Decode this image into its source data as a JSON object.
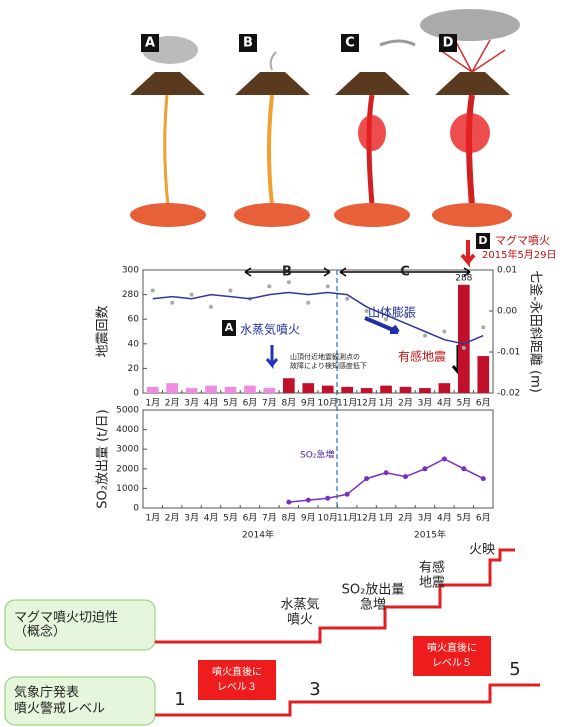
{
  "diagram": {
    "panels": [
      "A",
      "B",
      "C",
      "D"
    ]
  },
  "chart_data": [
    {
      "type": "bar",
      "y_label": "地震回数",
      "y2_label": "七釜-永田斜距離 (m)",
      "categories": [
        "1月",
        "2月",
        "3月",
        "4月",
        "5月",
        "6月",
        "7月",
        "8月",
        "9月",
        "10月",
        "11月",
        "12月",
        "1月",
        "2月",
        "3月",
        "4月",
        "5月",
        "6月"
      ],
      "series": [
        {
          "color": "#f08ce0",
          "values": [
            5,
            8,
            4,
            6,
            5,
            6,
            4,
            null,
            null,
            null,
            null,
            null,
            null,
            null,
            null,
            null,
            null,
            null
          ]
        },
        {
          "color": "#c0102a",
          "values": [
            null,
            null,
            null,
            null,
            null,
            null,
            null,
            12,
            8,
            6,
            5,
            4,
            6,
            5,
            4,
            8,
            288,
            30
          ]
        },
        {
          "type": "scatter",
          "axis": "y2",
          "color": "#aaaaaa",
          "values": [
            0.005,
            0.002,
            0.004,
            0.001,
            0.005,
            0.003,
            0.006,
            0.007,
            0.002,
            0.006,
            0.003,
            0.0,
            -0.002,
            -0.001,
            -0.006,
            -0.005,
            -0.009,
            -0.004
          ]
        },
        {
          "type": "line",
          "axis": "y2",
          "color": "#2b3a9c",
          "values": [
            0.003,
            0.0035,
            0.003,
            0.004,
            0.0035,
            0.003,
            0.004,
            0.0045,
            0.004,
            0.0045,
            0.004,
            0.001,
            -0.001,
            -0.003,
            -0.005,
            -0.007,
            -0.008,
            -0.006
          ]
        }
      ],
      "ylim": [
        0,
        300
      ],
      "yticks": [
        0,
        20,
        40,
        60,
        280,
        300
      ],
      "y2lim": [
        -0.02,
        0.01
      ],
      "y2ticks": [
        -0.02,
        -0.01,
        {
          "value": 0,
          "label": "0.00"
        },
        0.01
      ],
      "annotations": {
        "B": "B",
        "C": "C",
        "D": "D",
        "magma": "マグマ噴火",
        "date": "2015年5月29日",
        "A": "A",
        "phreatic": "水蒸気噴火",
        "inflation": "山体膨張",
        "felt": "有感地震",
        "note": [
          "山頂付近地震観測点の",
          "故障により検知感度低下"
        ]
      }
    },
    {
      "type": "line",
      "y_label": "SO₂放出量 (t/日)",
      "categories": [
        "1月",
        "2月",
        "3月",
        "4月",
        "5月",
        "6月",
        "7月",
        "8月",
        "9月",
        "10月",
        "11月",
        "12月",
        "1月",
        "2月",
        "3月",
        "4月",
        "5月",
        "6月"
      ],
      "series": [
        {
          "color": "#7b2fbf",
          "values": [
            null,
            null,
            null,
            null,
            null,
            null,
            null,
            300,
            400,
            500,
            700,
            1500,
            1800,
            1600,
            2000,
            2500,
            2000,
            1500
          ]
        }
      ],
      "ylim": [
        0,
        5000
      ],
      "yticks": [
        0,
        1000,
        2000,
        3000,
        4000,
        5000
      ],
      "annotation": "SO₂急増",
      "years": [
        "2014年",
        "2015年"
      ]
    }
  ],
  "stairs": {
    "left": [
      [
        "マグマ噴火切迫性",
        "（概念）"
      ],
      [
        "気象庁発表",
        "噴火警戒レベル"
      ]
    ],
    "steps": [
      [
        "水蒸気",
        "噴火"
      ],
      [
        "SO₂放出量",
        "急増"
      ],
      [
        "有感",
        "地震"
      ],
      [
        "火映"
      ]
    ],
    "levels": [
      "1",
      "3",
      "5"
    ],
    "callouts": [
      [
        "噴火直後に",
        "レベル３"
      ],
      [
        "噴火直後に",
        "レベル５"
      ]
    ]
  }
}
